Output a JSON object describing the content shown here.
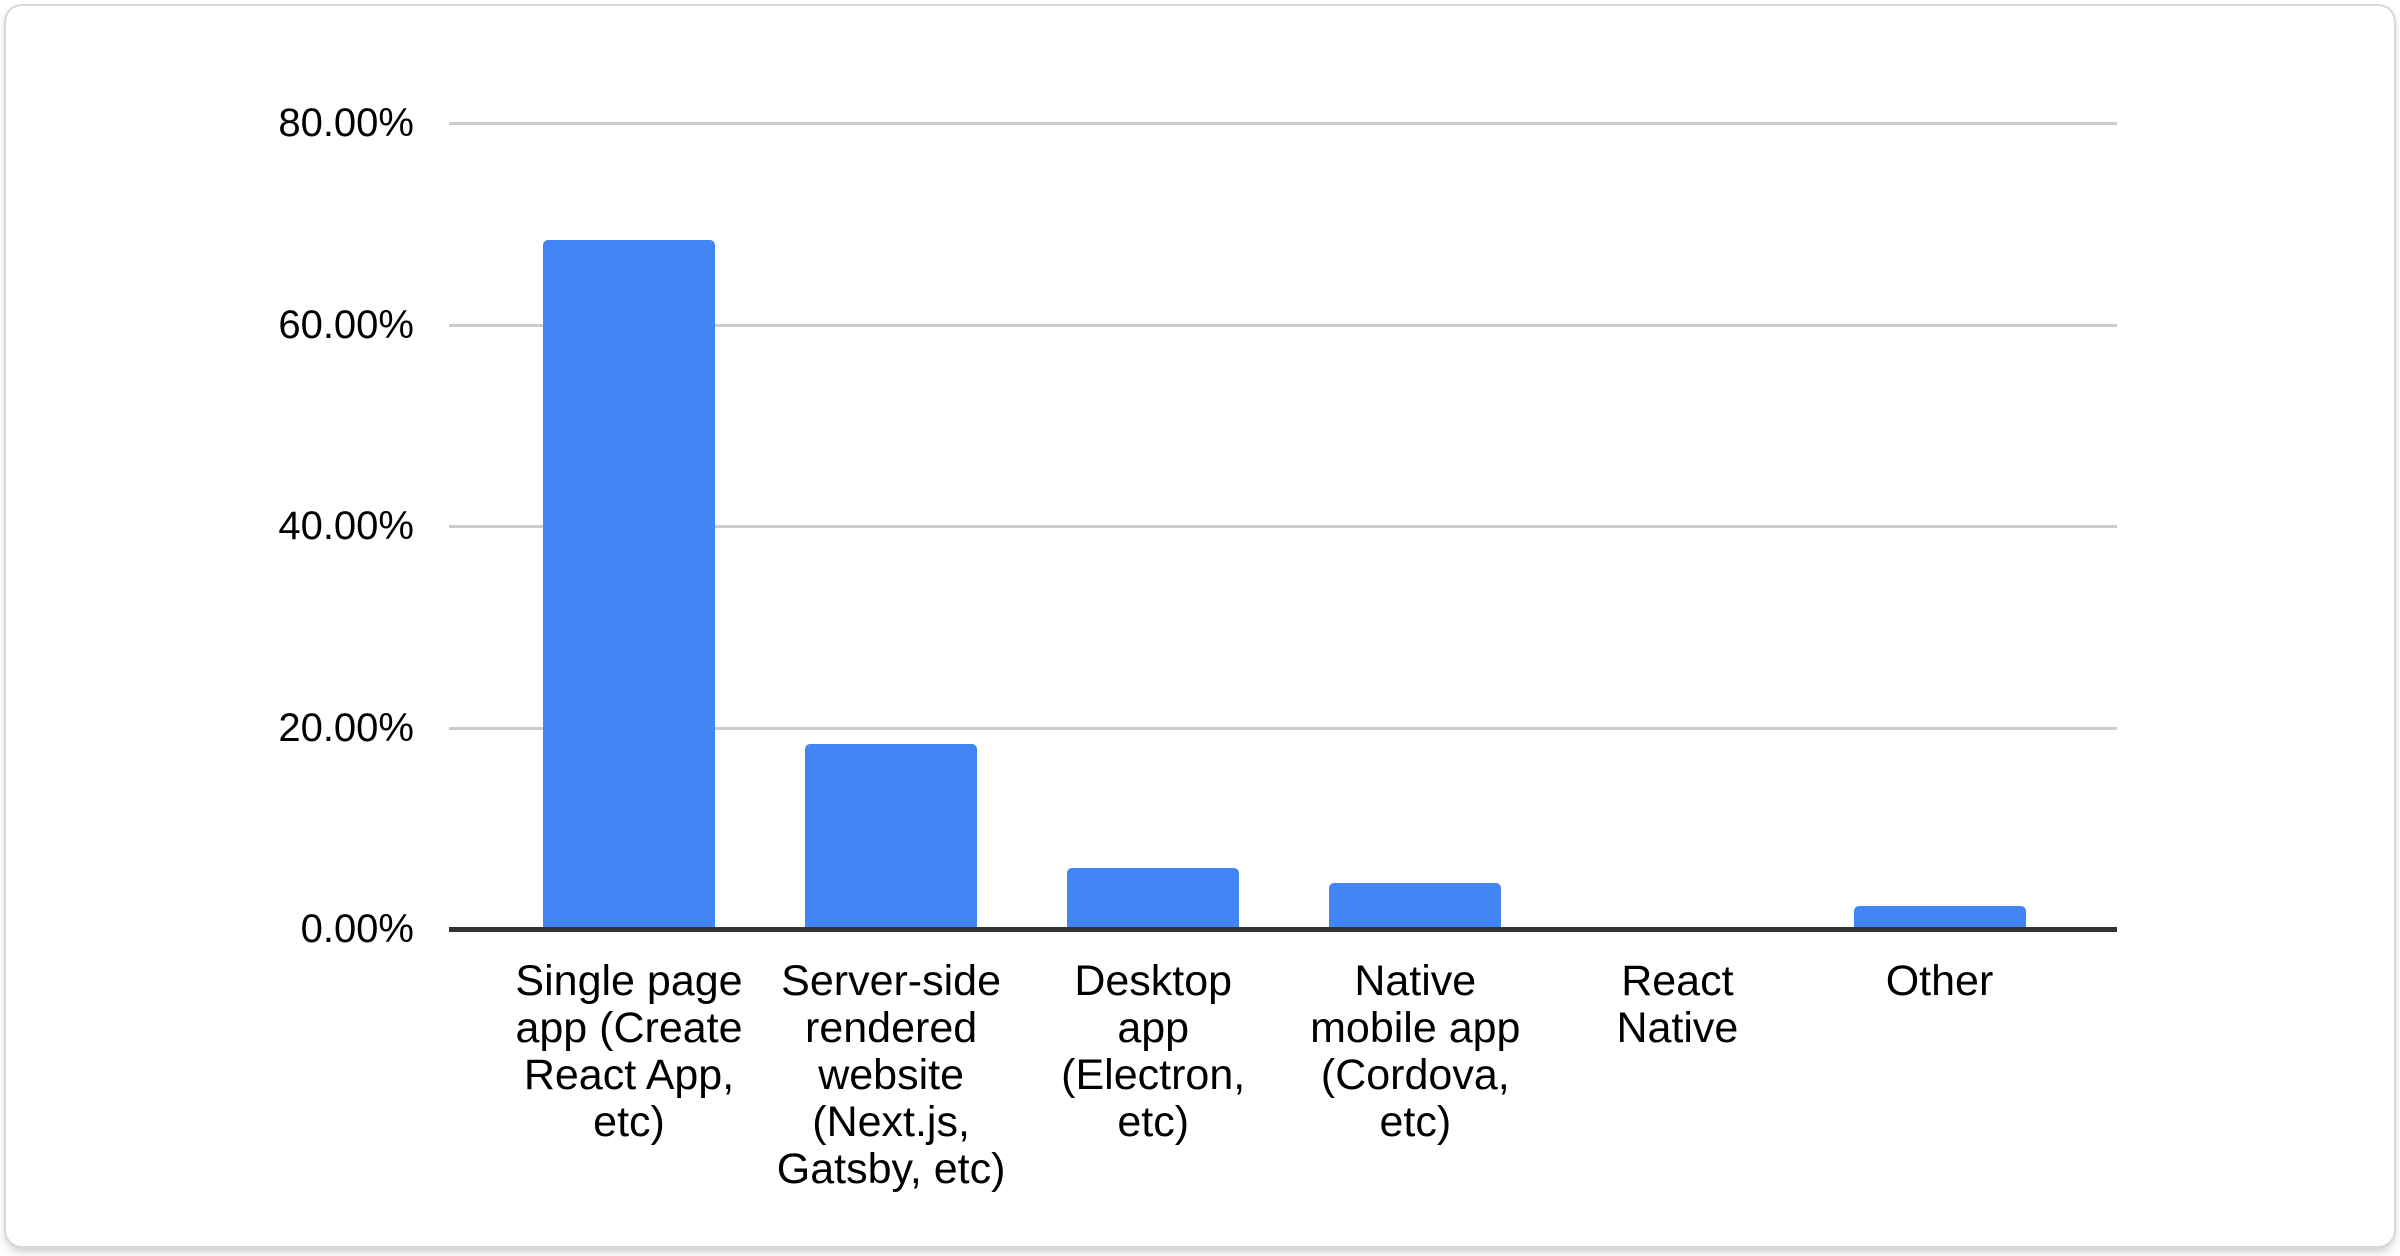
{
  "chart_data": {
    "type": "bar",
    "title": "",
    "categories": [
      "Single page app (Create React App, etc)",
      "Server-side rendered website (Next.js, Gatsby, etc)",
      "Desktop app (Electron, etc)",
      "Native mobile app (Cordova, etc)",
      "React Native",
      "Other"
    ],
    "category_label_lines": [
      [
        "Single page",
        "app (Create",
        "React App,",
        "etc)"
      ],
      [
        "Server-side",
        "rendered",
        "website",
        "(Next.js,",
        "Gatsby, etc)"
      ],
      [
        "Desktop",
        "app",
        "(Electron,",
        "etc)"
      ],
      [
        "Native",
        "mobile app",
        "(Cordova,",
        "etc)"
      ],
      [
        "React",
        "Native"
      ],
      [
        "Other"
      ]
    ],
    "values": [
      68.4,
      18.4,
      6.1,
      4.6,
      0,
      2.3
    ],
    "value_unit": "percent",
    "xlabel": "",
    "ylabel": "",
    "ylim": [
      0,
      80
    ],
    "y_ticks": [
      {
        "value": 80,
        "label": "80.00%"
      },
      {
        "value": 60,
        "label": "60.00%"
      },
      {
        "value": 40,
        "label": "40.00%"
      },
      {
        "value": 20,
        "label": "20.00%"
      },
      {
        "value": 0,
        "label": "0.00%"
      }
    ],
    "grid": true,
    "legend_position": "none",
    "colors": {
      "bar": "#4285f4",
      "gridline": "#cccccc",
      "axis_line": "#333333",
      "text": "#000000",
      "card_background": "#ffffff",
      "card_border": "#d5d8db"
    }
  }
}
